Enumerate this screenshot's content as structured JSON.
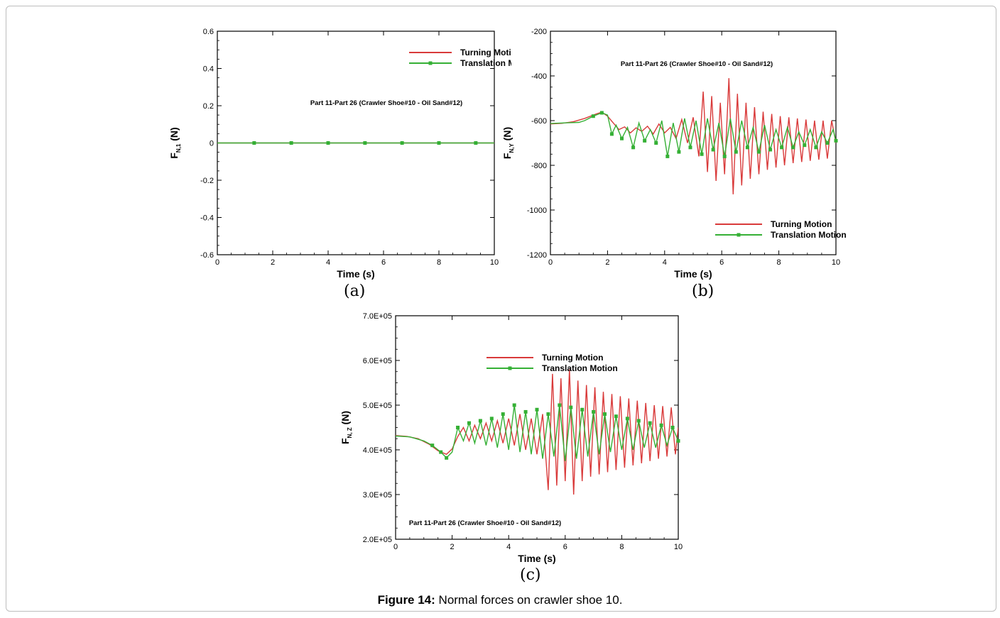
{
  "figure": {
    "caption_label": "Figure 14:",
    "caption_text": " Normal forces on crawler shoe 10."
  },
  "colors": {
    "turning": "#d93a3a",
    "translation": "#35b035"
  },
  "chart_data": [
    {
      "type": "line",
      "panel_label": "(a)",
      "title": "Part 11-Part 26 (Crawler Shoe#10 - Oil Sand#12)",
      "xlabel": "Time (s)",
      "ylabel_main": "F",
      "ylabel_sub": "N,1",
      "ylabel_unit": " (N)",
      "xlim": [
        0,
        10
      ],
      "ylim": [
        -0.6,
        0.6
      ],
      "xticks": [
        0,
        2,
        4,
        6,
        8,
        10
      ],
      "xtick_labels": [
        "0",
        "2",
        "4",
        "6",
        "8",
        "10"
      ],
      "yticks": [
        0.6,
        0.4,
        0.2,
        0,
        -0.2,
        -0.4,
        -0.6
      ],
      "ytick_labels": [
        "0.6",
        "0.4",
        "0.2",
        "0",
        "-0.2",
        "-0.4",
        "-0.6"
      ],
      "legend_position": "top-right",
      "series": [
        {
          "name": "Turning Motion",
          "style": "line",
          "x": [
            0,
            10
          ],
          "y": [
            0,
            0
          ]
        },
        {
          "name": "Translation Motion",
          "style": "line-markers",
          "x": [
            0,
            1.33,
            2.67,
            4.0,
            5.33,
            6.67,
            8.0,
            9.33,
            10
          ],
          "y": [
            0,
            0,
            0,
            0,
            0,
            0,
            0,
            0,
            0
          ],
          "marker_x": [
            1.33,
            2.67,
            4.0,
            5.33,
            6.67,
            8.0,
            9.33
          ]
        }
      ]
    },
    {
      "type": "line",
      "panel_label": "(b)",
      "title": "Part 11-Part 26 (Crawler Shoe#10 - Oil Sand#12)",
      "xlabel": "Time (s)",
      "ylabel_main": "F",
      "ylabel_sub": "N,Y",
      "ylabel_unit": " (N)",
      "xlim": [
        0,
        10
      ],
      "ylim": [
        -1200,
        -200
      ],
      "xticks": [
        0,
        2,
        4,
        6,
        8,
        10
      ],
      "xtick_labels": [
        "0",
        "2",
        "4",
        "6",
        "8",
        "10"
      ],
      "yticks": [
        -200,
        -400,
        -600,
        -800,
        -1000,
        -1200
      ],
      "ytick_labels": [
        "-200",
        "-400",
        "-600",
        "-800",
        "-1000",
        "-1200"
      ],
      "legend_position": "bottom-right",
      "series": [
        {
          "name": "Turning Motion",
          "style": "line",
          "x": [
            0,
            0.4,
            0.8,
            1.2,
            1.6,
            1.8,
            2.0,
            2.2,
            2.4,
            2.6,
            2.8,
            3.0,
            3.2,
            3.4,
            3.6,
            3.8,
            4.0,
            4.2,
            4.4,
            4.6,
            4.8,
            5.0,
            5.2,
            5.35,
            5.5,
            5.65,
            5.8,
            5.95,
            6.1,
            6.25,
            6.4,
            6.55,
            6.7,
            6.85,
            7.0,
            7.15,
            7.3,
            7.45,
            7.6,
            7.75,
            7.9,
            8.05,
            8.2,
            8.35,
            8.5,
            8.65,
            8.8,
            8.95,
            9.1,
            9.25,
            9.4,
            9.55,
            9.7,
            9.85,
            10
          ],
          "y": [
            -615,
            -612,
            -605,
            -590,
            -570,
            -562,
            -580,
            -610,
            -640,
            -628,
            -655,
            -632,
            -648,
            -625,
            -660,
            -615,
            -655,
            -630,
            -680,
            -595,
            -700,
            -585,
            -760,
            -470,
            -830,
            -490,
            -870,
            -520,
            -840,
            -410,
            -930,
            -480,
            -890,
            -520,
            -860,
            -540,
            -840,
            -560,
            -820,
            -570,
            -810,
            -580,
            -800,
            -585,
            -790,
            -590,
            -785,
            -595,
            -780,
            -600,
            -775,
            -600,
            -770,
            -600,
            -700
          ]
        },
        {
          "name": "Translation Motion",
          "style": "line-markers",
          "x": [
            0,
            0.5,
            1.0,
            1.2,
            1.5,
            1.8,
            2.0,
            2.15,
            2.3,
            2.5,
            2.7,
            2.9,
            3.1,
            3.3,
            3.5,
            3.7,
            3.9,
            4.1,
            4.3,
            4.5,
            4.7,
            4.9,
            5.1,
            5.3,
            5.5,
            5.7,
            5.9,
            6.1,
            6.3,
            6.5,
            6.7,
            6.9,
            7.1,
            7.3,
            7.5,
            7.7,
            7.9,
            8.1,
            8.3,
            8.5,
            8.7,
            8.9,
            9.1,
            9.3,
            9.5,
            9.7,
            9.9,
            10
          ],
          "y": [
            -613,
            -610,
            -608,
            -600,
            -580,
            -565,
            -575,
            -660,
            -620,
            -680,
            -630,
            -720,
            -610,
            -690,
            -640,
            -700,
            -600,
            -760,
            -610,
            -740,
            -590,
            -720,
            -600,
            -750,
            -590,
            -730,
            -610,
            -760,
            -590,
            -740,
            -600,
            -720,
            -630,
            -740,
            -620,
            -730,
            -640,
            -720,
            -630,
            -720,
            -650,
            -710,
            -640,
            -720,
            -650,
            -700,
            -640,
            -690
          ],
          "marker_x": [
            1.5,
            1.8,
            2.15,
            2.5,
            2.9,
            3.3,
            3.7,
            4.1,
            4.5,
            4.9,
            5.3,
            5.7,
            6.1,
            6.5,
            6.9,
            7.3,
            7.7,
            8.1,
            8.5,
            8.9,
            9.3,
            9.7,
            10
          ]
        }
      ]
    },
    {
      "type": "line",
      "panel_label": "(c)",
      "title": "Part 11-Part 26 (Crawler Shoe#10 - Oil Sand#12)",
      "xlabel": "Time (s)",
      "ylabel_main": "F",
      "ylabel_sub": "N, Z",
      "ylabel_unit": " (N)",
      "xlim": [
        0,
        10
      ],
      "ylim": [
        200000,
        700000
      ],
      "xticks": [
        0,
        2,
        4,
        6,
        8,
        10
      ],
      "xtick_labels": [
        "0",
        "2",
        "4",
        "6",
        "8",
        "10"
      ],
      "yticks": [
        700000,
        600000,
        500000,
        400000,
        300000,
        200000
      ],
      "ytick_labels": [
        "7.0E+05",
        "6.0E+05",
        "5.0E+05",
        "4.0E+05",
        "3.0E+05",
        "2.0E+05"
      ],
      "legend_position": "top-left",
      "series": [
        {
          "name": "Turning Motion",
          "style": "line",
          "x": [
            0,
            0.4,
            0.8,
            1.2,
            1.5,
            1.8,
            2.0,
            2.2,
            2.4,
            2.6,
            2.8,
            3.0,
            3.2,
            3.4,
            3.6,
            3.8,
            4.0,
            4.2,
            4.4,
            4.6,
            4.8,
            5.0,
            5.2,
            5.4,
            5.55,
            5.7,
            5.85,
            6.0,
            6.15,
            6.3,
            6.45,
            6.6,
            6.75,
            6.9,
            7.05,
            7.2,
            7.35,
            7.5,
            7.65,
            7.8,
            7.95,
            8.1,
            8.25,
            8.4,
            8.55,
            8.7,
            8.85,
            9.0,
            9.15,
            9.3,
            9.45,
            9.6,
            9.75,
            9.9,
            10
          ],
          "y": [
            432000,
            430000,
            425000,
            412000,
            398000,
            390000,
            402000,
            430000,
            450000,
            420000,
            455000,
            425000,
            460000,
            420000,
            465000,
            415000,
            470000,
            410000,
            480000,
            400000,
            470000,
            390000,
            480000,
            310000,
            570000,
            320000,
            560000,
            330000,
            580000,
            300000,
            555000,
            330000,
            545000,
            340000,
            540000,
            345000,
            530000,
            350000,
            525000,
            355000,
            520000,
            360000,
            515000,
            365000,
            510000,
            370000,
            505000,
            375000,
            500000,
            380000,
            498000,
            385000,
            495000,
            390000,
            450000
          ]
        },
        {
          "name": "Translation Motion",
          "style": "line-markers",
          "x": [
            0,
            0.5,
            1.0,
            1.3,
            1.6,
            1.8,
            2.0,
            2.2,
            2.4,
            2.6,
            2.8,
            3.0,
            3.2,
            3.4,
            3.6,
            3.8,
            4.0,
            4.2,
            4.4,
            4.6,
            4.8,
            5.0,
            5.2,
            5.4,
            5.6,
            5.8,
            6.0,
            6.2,
            6.4,
            6.6,
            6.8,
            7.0,
            7.2,
            7.4,
            7.6,
            7.8,
            8.0,
            8.2,
            8.4,
            8.6,
            8.8,
            9.0,
            9.2,
            9.4,
            9.6,
            9.8,
            10
          ],
          "y": [
            431000,
            429000,
            420000,
            410000,
            395000,
            382000,
            395000,
            450000,
            420000,
            460000,
            415000,
            465000,
            410000,
            470000,
            405000,
            480000,
            400000,
            500000,
            395000,
            485000,
            390000,
            490000,
            380000,
            480000,
            385000,
            500000,
            375000,
            495000,
            380000,
            490000,
            385000,
            485000,
            390000,
            480000,
            395000,
            475000,
            400000,
            470000,
            400000,
            465000,
            405000,
            460000,
            405000,
            455000,
            410000,
            450000,
            420000
          ],
          "marker_x": [
            1.3,
            1.6,
            1.8,
            2.2,
            2.6,
            3.0,
            3.4,
            3.8,
            4.2,
            4.6,
            5.0,
            5.4,
            5.8,
            6.2,
            6.6,
            7.0,
            7.4,
            7.8,
            8.2,
            8.6,
            9.0,
            9.4,
            9.8,
            10
          ]
        }
      ]
    }
  ]
}
